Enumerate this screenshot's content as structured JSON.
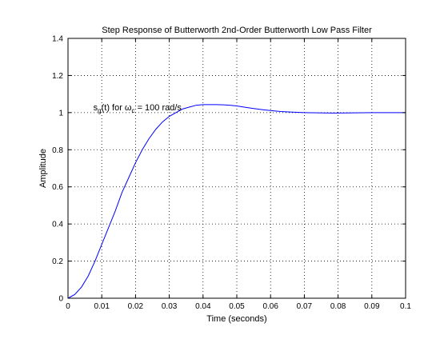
{
  "chart_data": {
    "type": "line",
    "title": "Step Response of Butterworth 2nd-Order Butterworth Low Pass Filter",
    "xlabel": "Time (seconds)",
    "ylabel": "Amplitude",
    "xlim": [
      0,
      0.1
    ],
    "ylim": [
      0,
      1.4
    ],
    "grid": true,
    "x_ticks": [
      "0",
      "0.01",
      "0.02",
      "0.03",
      "0.04",
      "0.05",
      "0.06",
      "0.07",
      "0.08",
      "0.09",
      "0.1"
    ],
    "y_ticks": [
      "0",
      "0.2",
      "0.4",
      "0.6",
      "0.8",
      "1",
      "1.2",
      "1.4"
    ],
    "x_tick_values": [
      0,
      0.01,
      0.02,
      0.03,
      0.04,
      0.05,
      0.06,
      0.07,
      0.08,
      0.09,
      0.1
    ],
    "y_tick_values": [
      0,
      0.2,
      0.4,
      0.6,
      0.8,
      1,
      1.2,
      1.4
    ],
    "series": [
      {
        "color": "#0000ff",
        "x": [
          0,
          0.002,
          0.004,
          0.006,
          0.008,
          0.01,
          0.012,
          0.014,
          0.016,
          0.018,
          0.02,
          0.022,
          0.024,
          0.026,
          0.028,
          0.03,
          0.032,
          0.034,
          0.036,
          0.038,
          0.04,
          0.042,
          0.044,
          0.046,
          0.048,
          0.05,
          0.052,
          0.055,
          0.058,
          0.06,
          0.063,
          0.066,
          0.07,
          0.074,
          0.078,
          0.08,
          0.085,
          0.09,
          0.095,
          0.1
        ],
        "y": [
          0,
          0.02,
          0.06,
          0.12,
          0.2,
          0.29,
          0.38,
          0.47,
          0.57,
          0.65,
          0.73,
          0.8,
          0.86,
          0.91,
          0.95,
          0.98,
          1.0,
          1.02,
          1.03,
          1.04,
          1.043,
          1.043,
          1.043,
          1.042,
          1.04,
          1.036,
          1.03,
          1.022,
          1.015,
          1.011,
          1.006,
          1.003,
          1.0,
          0.999,
          0.998,
          0.998,
          0.999,
          1.0,
          1.0,
          1.0
        ]
      }
    ],
    "annotation": {
      "text_parts": [
        "s",
        "g",
        "(t) for  ω",
        "c",
        " = 100 rad/s"
      ],
      "x": 0.0075,
      "y": 1.0
    }
  }
}
